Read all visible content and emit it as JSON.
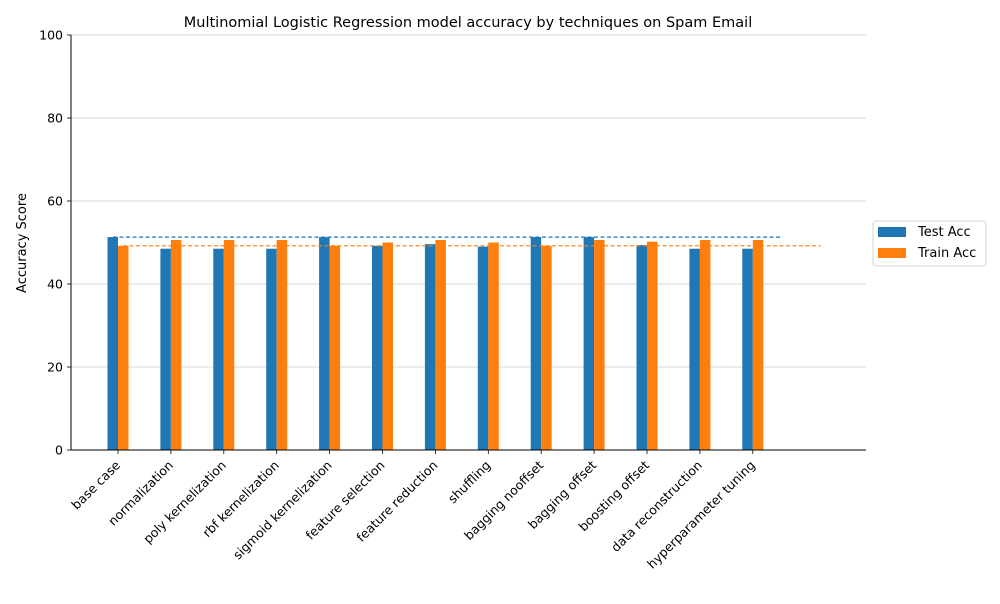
{
  "chart_data": {
    "type": "bar",
    "title": "Multinomial Logistic Regression model accuracy by techniques on Spam Email",
    "xlabel": "",
    "ylabel": "Accuracy Score",
    "ylim": [
      0,
      100
    ],
    "yticks": [
      0,
      20,
      40,
      60,
      80,
      100
    ],
    "grid": "horizontal",
    "legend_position": "right",
    "categories": [
      "base case",
      "normalization",
      "poly kernelization",
      "rbf kernelization",
      "sigmoid kernelization",
      "feature selection",
      "feature reduction",
      "shuffling",
      "bagging nooffset",
      "bagging offset",
      "boosting offset",
      "data reconstruction",
      "hyperparameter tuning"
    ],
    "series": [
      {
        "name": "Test Acc",
        "color": "#1f77b4",
        "values": [
          51.3,
          48.5,
          48.5,
          48.5,
          51.3,
          49.2,
          49.6,
          49.0,
          51.3,
          51.3,
          49.4,
          48.5,
          48.5
        ],
        "reference_line": 51.3
      },
      {
        "name": "Train Acc",
        "color": "#ff7f0e",
        "values": [
          49.2,
          50.6,
          50.6,
          50.6,
          49.2,
          50.0,
          50.6,
          50.0,
          49.2,
          50.6,
          50.2,
          50.6,
          50.6
        ],
        "reference_line": 49.2
      }
    ]
  }
}
